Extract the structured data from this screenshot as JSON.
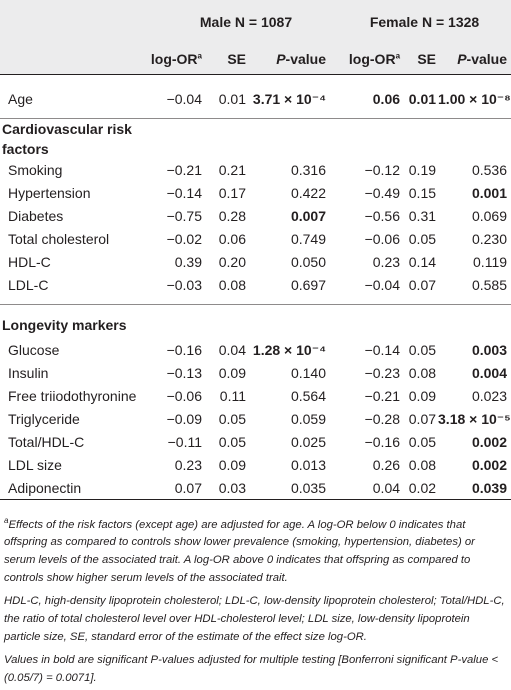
{
  "header": {
    "group_male": "Male N = 1087",
    "group_female": "Female N = 1328",
    "cols": {
      "logor": "log-OR",
      "logor_sup": "a",
      "se": "SE",
      "pvalue": "P-value"
    }
  },
  "age": {
    "label": "Age",
    "m_or": "−0.04",
    "m_se": "0.01",
    "m_p": "3.71 × 10⁻⁴",
    "f_or": "0.06",
    "f_se": "0.01",
    "f_p": "1.00 × 10⁻⁸"
  },
  "sections": [
    {
      "title_line1": "Cardiovascular risk",
      "title_line2": "factors",
      "rows": [
        {
          "label": "Smoking",
          "m_or": "−0.21",
          "m_se": "0.21",
          "m_p": "0.316",
          "f_or": "−0.12",
          "f_se": "0.19",
          "f_p": "0.536"
        },
        {
          "label": "Hypertension",
          "m_or": "−0.14",
          "m_se": "0.17",
          "m_p": "0.422",
          "f_or": "−0.49",
          "f_se": "0.15",
          "f_p": "0.001"
        },
        {
          "label": "Diabetes",
          "m_or": "−0.75",
          "m_se": "0.28",
          "m_p": "0.007",
          "f_or": "−0.56",
          "f_se": "0.31",
          "f_p": "0.069"
        },
        {
          "label": "Total cholesterol",
          "m_or": "−0.02",
          "m_se": "0.06",
          "m_p": "0.749",
          "f_or": "−0.06",
          "f_se": "0.05",
          "f_p": "0.230"
        },
        {
          "label": "HDL-C",
          "m_or": "0.39",
          "m_se": "0.20",
          "m_p": "0.050",
          "f_or": "0.23",
          "f_se": "0.14",
          "f_p": "0.119"
        },
        {
          "label": "LDL-C",
          "m_or": "−0.03",
          "m_se": "0.08",
          "m_p": "0.697",
          "f_or": "−0.04",
          "f_se": "0.07",
          "f_p": "0.585"
        }
      ]
    },
    {
      "title_line1": "Longevity markers",
      "rows": [
        {
          "label": "Glucose",
          "m_or": "−0.16",
          "m_se": "0.04",
          "m_p": "1.28 × 10⁻⁴",
          "f_or": "−0.14",
          "f_se": "0.05",
          "f_p": "0.003"
        },
        {
          "label": "Insulin",
          "m_or": "−0.13",
          "m_se": "0.09",
          "m_p": "0.140",
          "f_or": "−0.23",
          "f_se": "0.08",
          "f_p": "0.004"
        },
        {
          "label": "Free triiodothyronine",
          "m_or": "−0.06",
          "m_se": "0.11",
          "m_p": "0.564",
          "f_or": "−0.21",
          "f_se": "0.09",
          "f_p": "0.023"
        },
        {
          "label": "Triglyceride",
          "m_or": "−0.09",
          "m_se": "0.05",
          "m_p": "0.059",
          "f_or": "−0.28",
          "f_se": "0.07",
          "f_p": "3.18 × 10⁻⁵"
        },
        {
          "label": "Total/HDL-C",
          "m_or": "−0.11",
          "m_se": "0.05",
          "m_p": "0.025",
          "f_or": "−0.16",
          "f_se": "0.05",
          "f_p": "0.002"
        },
        {
          "label": "LDL size",
          "m_or": "0.23",
          "m_se": "0.09",
          "m_p": "0.013",
          "f_or": "0.26",
          "f_se": "0.08",
          "f_p": "0.002"
        },
        {
          "label": "Adiponectin",
          "m_or": "0.07",
          "m_se": "0.03",
          "m_p": "0.035",
          "f_or": "0.04",
          "f_se": "0.02",
          "f_p": "0.039"
        }
      ]
    }
  ],
  "footnotes": {
    "a_mark": "a",
    "a_text": "Effects of the risk factors (except age) are adjusted for age. A log-OR below 0 indicates that offspring as compared to controls show lower prevalence (smoking, hypertension, diabetes) or serum levels of the associated trait. A log-OR above 0 indicates that offspring as compared to controls show higher serum levels of the associated trait.",
    "abbrev": "HDL-C, high-density lipoprotein cholesterol; LDL-C, low-density lipoprotein cholesterol; Total/HDL-C, the ratio of total cholesterol level over HDL-cholesterol level; LDL size, low-density lipoprotein particle size, SE, standard error of the estimate of the effect size log-OR.",
    "bold_note": "Values in bold are significant P-values adjusted for multiple testing [Bonferroni significant P-value < (0.05/7) = 0.0071]."
  }
}
